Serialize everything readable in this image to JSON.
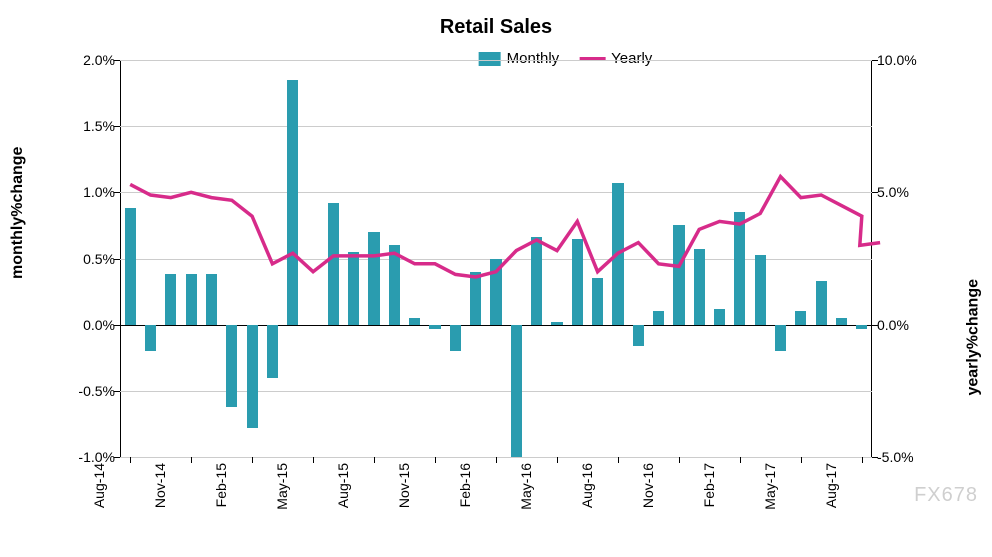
{
  "chart": {
    "type": "bar+line",
    "title": "Retail Sales",
    "title_fontsize": 20,
    "title_fontweight": "bold",
    "background_color": "#ffffff",
    "grid_color": "#cccccc",
    "axis_color": "#000000",
    "watermark": "FX678",
    "legend": [
      {
        "label": "Monthly",
        "type": "bar",
        "color": "#2a9caf"
      },
      {
        "label": "Yearly",
        "type": "line",
        "color": "#d72b8a"
      }
    ],
    "y_left": {
      "label": "monthly%change",
      "min": -1.0,
      "max": 2.0,
      "ticks": [
        -1.0,
        -0.5,
        0.0,
        0.5,
        1.0,
        1.5,
        2.0
      ],
      "tick_labels": [
        "-1.0%",
        "-0.5%",
        "0.0%",
        "0.5%",
        "1.0%",
        "1.5%",
        "2.0%"
      ],
      "fontsize": 14
    },
    "y_right": {
      "label": "yearly%change",
      "min": -5.0,
      "max": 10.0,
      "ticks": [
        -5.0,
        0.0,
        5.0,
        10.0
      ],
      "tick_labels": [
        "-5.0%",
        "0.0%",
        "5.0%",
        "10.0%"
      ],
      "fontsize": 14
    },
    "x": {
      "categories": [
        "Aug-14",
        "Sep-14",
        "Oct-14",
        "Nov-14",
        "Dec-14",
        "Jan-15",
        "Feb-15",
        "Mar-15",
        "Apr-15",
        "May-15",
        "Jun-15",
        "Jul-15",
        "Aug-15",
        "Sep-15",
        "Oct-15",
        "Nov-15",
        "Dec-15",
        "Jan-16",
        "Feb-16",
        "Mar-16",
        "Apr-16",
        "May-16",
        "Jun-16",
        "Jul-16",
        "Aug-16",
        "Sep-16",
        "Oct-16",
        "Nov-16",
        "Dec-16",
        "Jan-17",
        "Feb-17",
        "Mar-17",
        "Apr-17",
        "May-17",
        "Jun-17",
        "Jul-17",
        "Aug-17"
      ],
      "shown_labels": [
        "Aug-14",
        "Nov-14",
        "Feb-15",
        "May-15",
        "Aug-15",
        "Nov-15",
        "Feb-16",
        "May-16",
        "Aug-16",
        "Nov-16",
        "Feb-17",
        "May-17",
        "Aug-17"
      ],
      "label_rotation": -90,
      "label_fontsize": 14
    },
    "bars": {
      "axis": "left",
      "color": "#2a9caf",
      "width_ratio": 0.55,
      "values": [
        0.88,
        -0.2,
        0.38,
        0.38,
        0.38,
        -0.62,
        -0.78,
        -0.4,
        1.85,
        0.0,
        0.92,
        0.55,
        0.7,
        0.6,
        0.05,
        -0.03,
        -0.2,
        0.4,
        0.5,
        -1.0,
        0.66,
        0.02,
        0.65,
        0.35,
        1.07,
        -0.16,
        0.1,
        0.75,
        0.57,
        0.12,
        0.85,
        0.53,
        -0.2,
        0.1,
        0.33,
        0.05,
        -0.03
      ]
    },
    "extra_bars": {
      "comment": "trailing small bars near Jul/Aug-17",
      "axis": "left",
      "color": "#2a9caf",
      "width_ratio": 0.55,
      "anchors_months": [
        "Jul-17",
        "Aug-17"
      ],
      "values": [
        0.28,
        -0.2
      ]
    },
    "line": {
      "axis": "right",
      "color": "#d72b8a",
      "width": 3.5,
      "values": [
        5.3,
        4.9,
        4.8,
        5.0,
        4.8,
        4.7,
        4.1,
        2.3,
        2.7,
        2.0,
        2.6,
        2.6,
        2.6,
        2.7,
        2.3,
        2.3,
        1.9,
        1.8,
        2.0,
        2.8,
        3.2,
        2.8,
        3.9,
        2.0,
        2.7,
        3.1,
        2.3,
        2.2,
        3.6,
        3.9,
        3.8,
        4.2,
        5.6,
        4.8,
        4.9,
        4.5,
        4.1
      ]
    },
    "line_tail": {
      "comment": "continuation after Aug-17 dip and rise",
      "axis": "right",
      "color": "#d72b8a",
      "anchors_months": [
        "Jul-17",
        "Aug-17"
      ],
      "values": [
        3.0,
        3.1
      ]
    }
  }
}
